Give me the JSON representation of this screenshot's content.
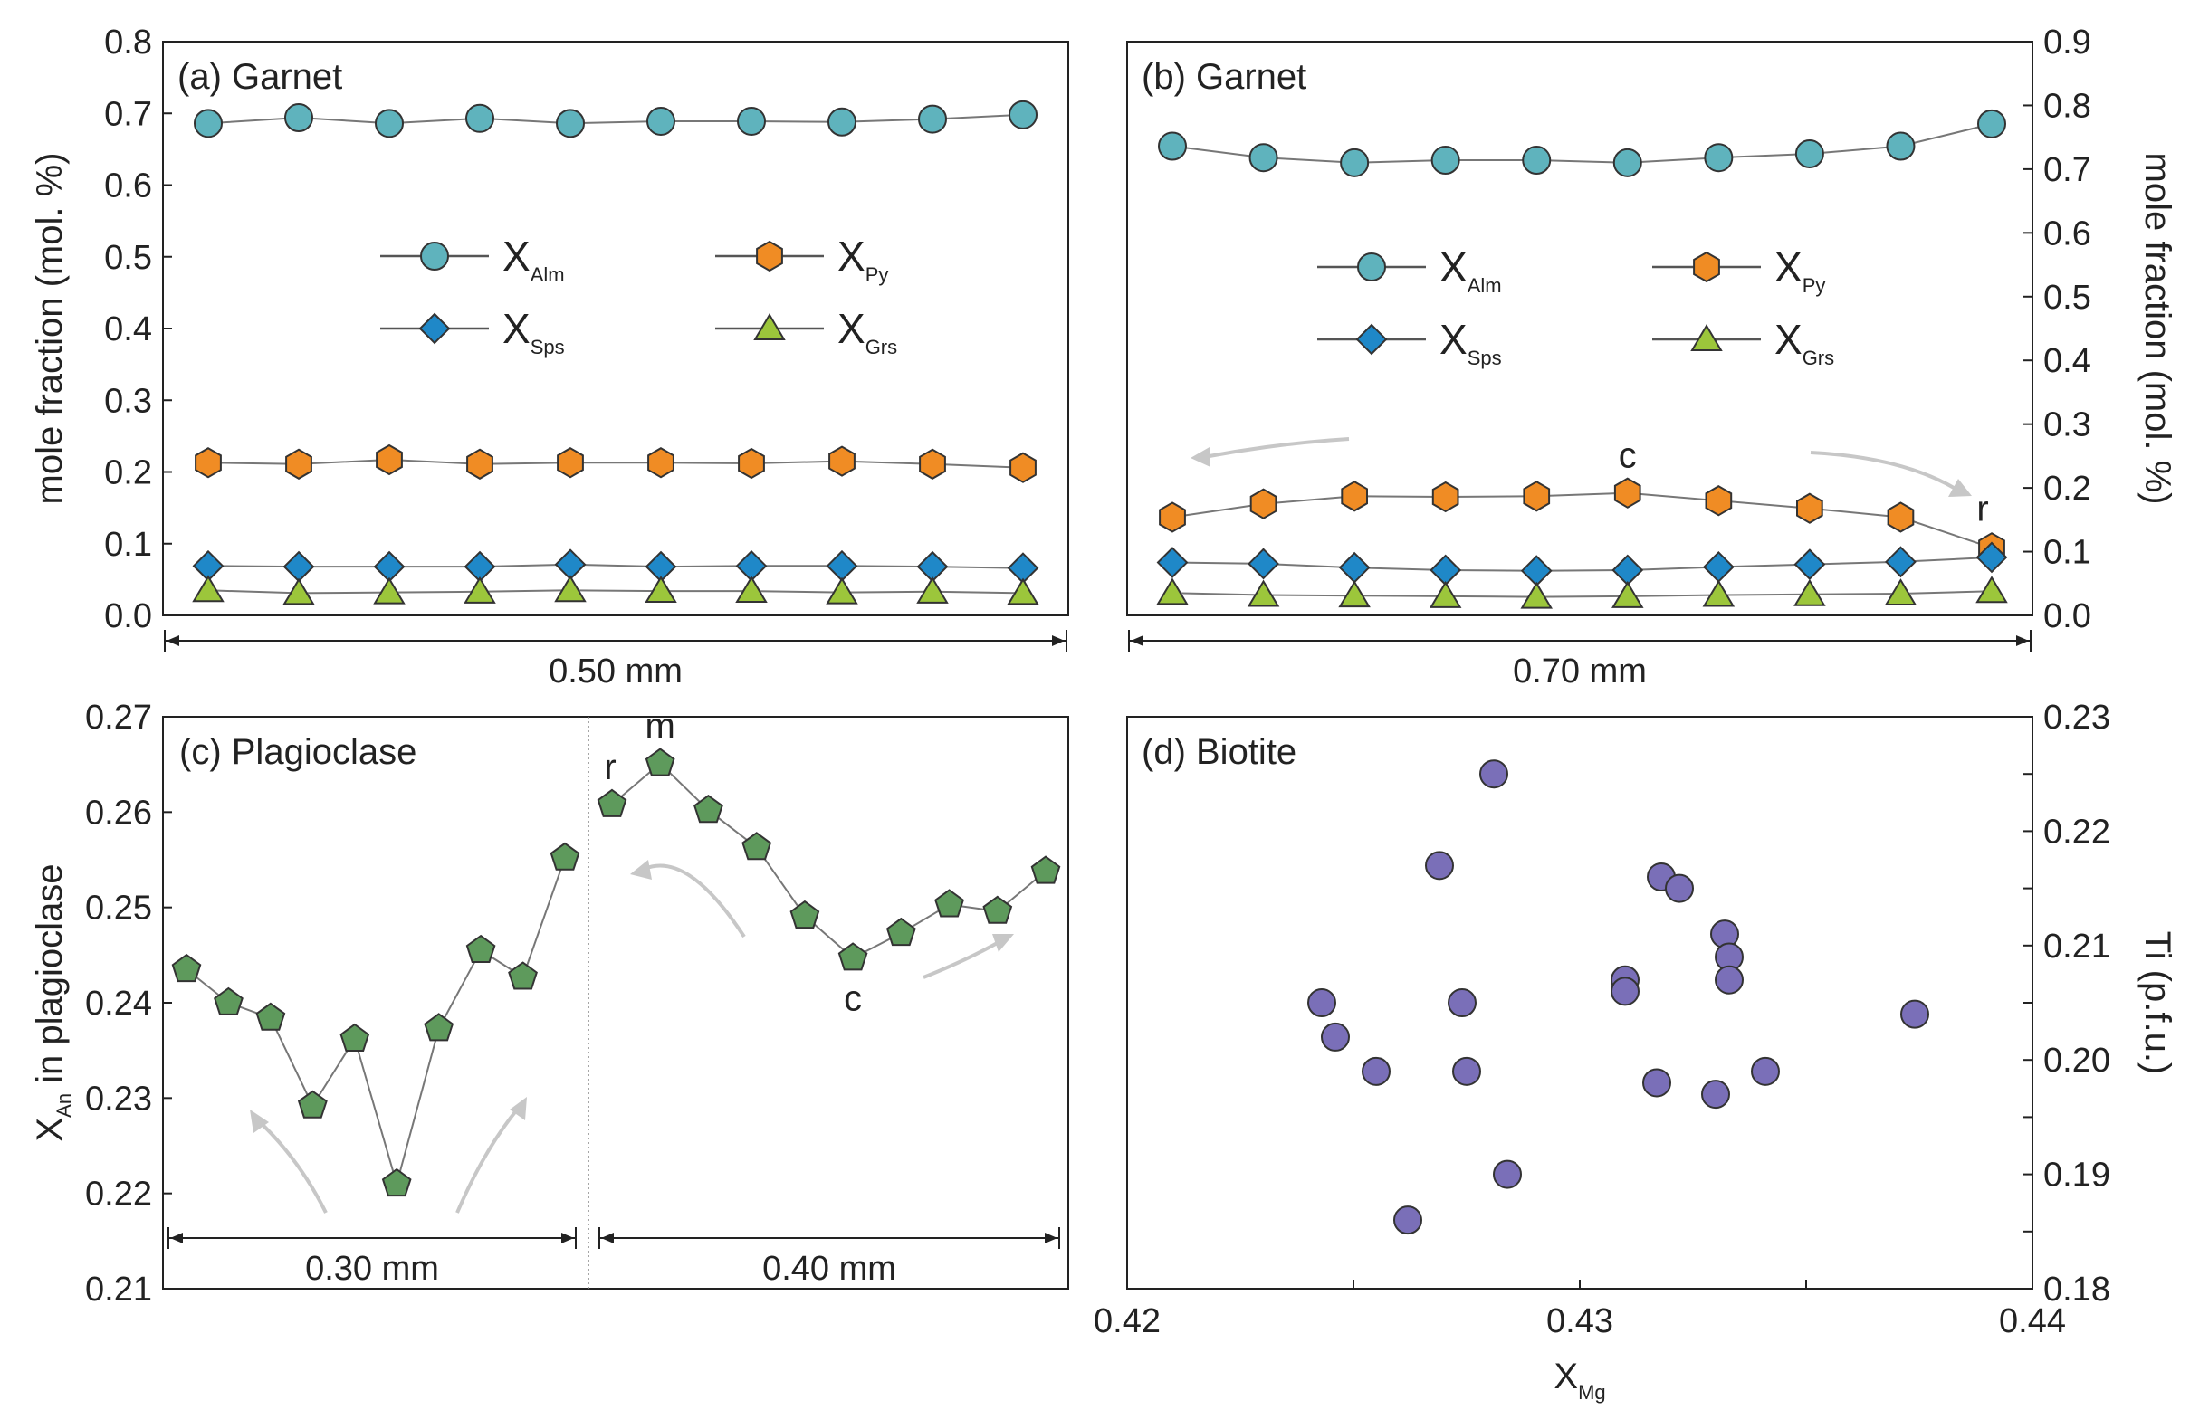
{
  "colors": {
    "alm": "#5fb3bd",
    "py": "#f08c24",
    "sps": "#1f88c8",
    "grs": "#9cc63b",
    "an": "#5e9a5c",
    "bt": "#7a6fb8",
    "line": "#777777",
    "axis": "#222222",
    "arrow": "#c7c7c7"
  },
  "chart_data": [
    {
      "panel": "a",
      "type": "line",
      "title": "(a) Garnet",
      "ylabel": "mole fraction (mol. %)",
      "ylim": [
        0.0,
        0.8
      ],
      "yticks": [
        "0.0",
        "0.1",
        "0.2",
        "0.3",
        "0.4",
        "0.5",
        "0.6",
        "0.7",
        "0.8"
      ],
      "span_label": "0.50 mm",
      "x": [
        1,
        2,
        3,
        4,
        5,
        6,
        7,
        8,
        9,
        10
      ],
      "series": [
        {
          "name": "Alm",
          "values": [
            0.686,
            0.694,
            0.686,
            0.693,
            0.686,
            0.689,
            0.689,
            0.688,
            0.692,
            0.698
          ]
        },
        {
          "name": "Py",
          "values": [
            0.213,
            0.211,
            0.217,
            0.211,
            0.213,
            0.213,
            0.212,
            0.215,
            0.211,
            0.206
          ]
        },
        {
          "name": "Sps",
          "values": [
            0.069,
            0.068,
            0.068,
            0.068,
            0.071,
            0.068,
            0.069,
            0.069,
            0.068,
            0.066
          ]
        },
        {
          "name": "Grs",
          "values": [
            0.035,
            0.031,
            0.032,
            0.033,
            0.035,
            0.034,
            0.034,
            0.032,
            0.033,
            0.031
          ]
        }
      ],
      "legend": [
        {
          "main": "X",
          "sub": "Alm"
        },
        {
          "main": "X",
          "sub": "Py"
        },
        {
          "main": "X",
          "sub": "Sps"
        },
        {
          "main": "X",
          "sub": "Grs"
        }
      ]
    },
    {
      "panel": "b",
      "type": "line",
      "title": "(b) Garnet",
      "ylabel": "mole fraction (mol. %)",
      "ylim": [
        0.0,
        0.9
      ],
      "yticks": [
        "0.0",
        "0.1",
        "0.2",
        "0.3",
        "0.4",
        "0.5",
        "0.6",
        "0.7",
        "0.8",
        "0.9"
      ],
      "span_label": "0.70 mm",
      "x": [
        1,
        2,
        3,
        4,
        5,
        6,
        7,
        8,
        9,
        10
      ],
      "annotations": {
        "core": "c",
        "rim": "r"
      },
      "series": [
        {
          "name": "Alm",
          "values": [
            0.736,
            0.718,
            0.71,
            0.714,
            0.714,
            0.71,
            0.718,
            0.724,
            0.736,
            0.771
          ]
        },
        {
          "name": "Py",
          "values": [
            0.154,
            0.175,
            0.187,
            0.186,
            0.187,
            0.192,
            0.18,
            0.168,
            0.154,
            0.106
          ]
        },
        {
          "name": "Sps",
          "values": [
            0.083,
            0.081,
            0.075,
            0.071,
            0.07,
            0.071,
            0.076,
            0.08,
            0.084,
            0.091
          ]
        },
        {
          "name": "Grs",
          "values": [
            0.035,
            0.032,
            0.031,
            0.03,
            0.029,
            0.03,
            0.032,
            0.033,
            0.034,
            0.038
          ]
        }
      ],
      "legend": [
        {
          "main": "X",
          "sub": "Alm"
        },
        {
          "main": "X",
          "sub": "Py"
        },
        {
          "main": "X",
          "sub": "Sps"
        },
        {
          "main": "X",
          "sub": "Grs"
        }
      ]
    },
    {
      "panel": "c",
      "type": "line",
      "title": "(c) Plagioclase",
      "ylabel_main": "X",
      "ylabel_sub": "An",
      "ylabel_rest": " in plagioclase",
      "ylim": [
        0.21,
        0.27
      ],
      "yticks": [
        "0.21",
        "0.22",
        "0.23",
        "0.24",
        "0.25",
        "0.26",
        "0.27"
      ],
      "left_segment": {
        "span_label": "0.30 mm",
        "values": [
          0.2435,
          0.24,
          0.2384,
          0.2292,
          0.2362,
          0.221,
          0.2373,
          0.2455,
          0.2427,
          0.2552
        ]
      },
      "right_segment": {
        "span_label": "0.40 mm",
        "values": [
          0.2608,
          0.2651,
          0.2602,
          0.2563,
          0.2491,
          0.2447,
          0.2473,
          0.2503,
          0.2496,
          0.2538
        ]
      },
      "annotations": {
        "rim": "r",
        "mantle": "m",
        "core": "c"
      }
    },
    {
      "panel": "d",
      "type": "scatter",
      "title": "(d) Biotite",
      "xlabel_main": "X",
      "xlabel_sub": "Mg",
      "ylabel": "Ti (p.f.u.)",
      "xlim": [
        0.42,
        0.44
      ],
      "ylim": [
        0.18,
        0.23
      ],
      "xticks": [
        "0.42",
        "0.43",
        "0.44"
      ],
      "yticks": [
        "0.18",
        "0.19",
        "0.20",
        "0.21",
        "0.22",
        "0.23"
      ],
      "points": [
        {
          "x": 0.4281,
          "y": 0.225
        },
        {
          "x": 0.4269,
          "y": 0.217
        },
        {
          "x": 0.4318,
          "y": 0.216
        },
        {
          "x": 0.4322,
          "y": 0.215
        },
        {
          "x": 0.4332,
          "y": 0.211
        },
        {
          "x": 0.4333,
          "y": 0.209
        },
        {
          "x": 0.4333,
          "y": 0.207
        },
        {
          "x": 0.431,
          "y": 0.207
        },
        {
          "x": 0.431,
          "y": 0.206
        },
        {
          "x": 0.4243,
          "y": 0.205
        },
        {
          "x": 0.4274,
          "y": 0.205
        },
        {
          "x": 0.4374,
          "y": 0.204
        },
        {
          "x": 0.4246,
          "y": 0.202
        },
        {
          "x": 0.4255,
          "y": 0.199
        },
        {
          "x": 0.4275,
          "y": 0.199
        },
        {
          "x": 0.4341,
          "y": 0.199
        },
        {
          "x": 0.4317,
          "y": 0.198
        },
        {
          "x": 0.433,
          "y": 0.197
        },
        {
          "x": 0.4284,
          "y": 0.19
        },
        {
          "x": 0.4262,
          "y": 0.186
        }
      ]
    }
  ]
}
